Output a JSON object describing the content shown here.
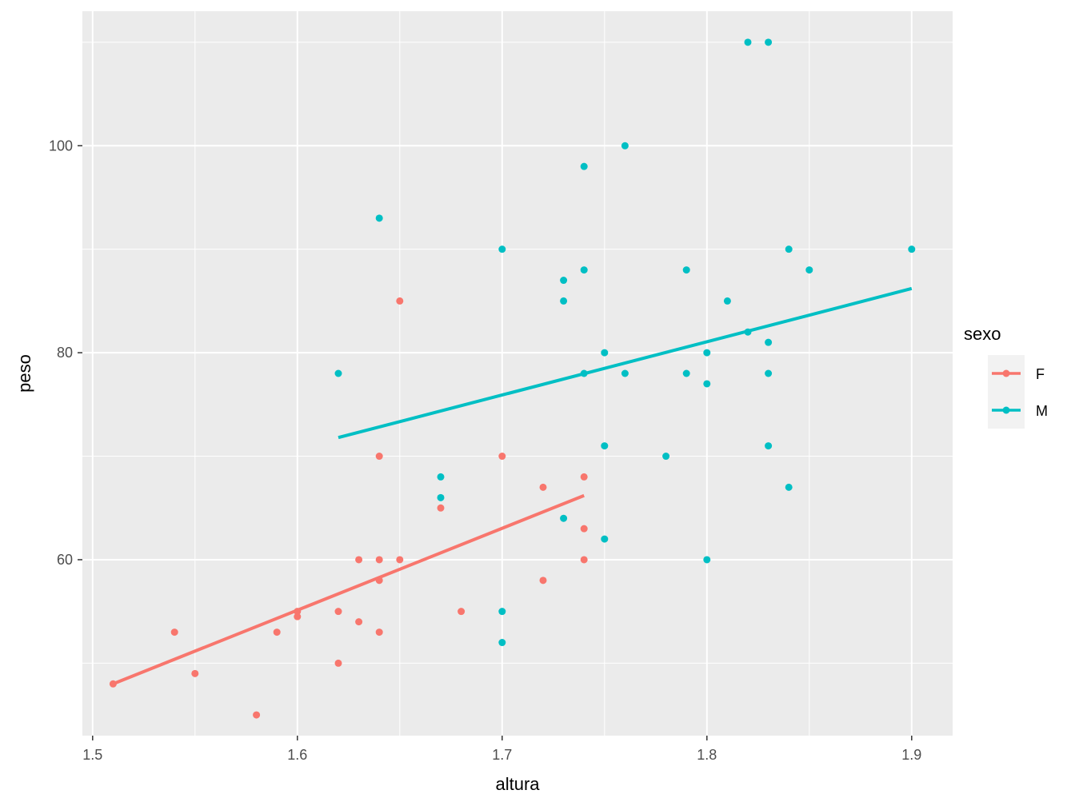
{
  "chart_data": {
    "type": "scatter",
    "title": "",
    "xlabel": "altura",
    "ylabel": "peso",
    "xlim": [
      1.495,
      1.92
    ],
    "ylim": [
      43.0,
      113.0
    ],
    "x_ticks": [
      1.5,
      1.6,
      1.7,
      1.8,
      1.9
    ],
    "x_tick_labels": [
      "1.5",
      "1.6",
      "1.7",
      "1.8",
      "1.9"
    ],
    "y_ticks": [
      60,
      80,
      100
    ],
    "y_tick_labels": [
      "60",
      "80",
      "100"
    ],
    "grid": true,
    "legend": {
      "title": "sexo",
      "placement": "right"
    },
    "series": [
      {
        "name": "F",
        "color": "#F8766D",
        "points": [
          [
            1.51,
            48
          ],
          [
            1.54,
            53
          ],
          [
            1.55,
            49
          ],
          [
            1.58,
            45
          ],
          [
            1.59,
            53
          ],
          [
            1.6,
            55
          ],
          [
            1.6,
            54.5
          ],
          [
            1.62,
            55
          ],
          [
            1.62,
            50
          ],
          [
            1.63,
            54
          ],
          [
            1.63,
            60
          ],
          [
            1.64,
            60
          ],
          [
            1.64,
            58
          ],
          [
            1.64,
            53
          ],
          [
            1.64,
            70
          ],
          [
            1.65,
            60
          ],
          [
            1.65,
            85
          ],
          [
            1.67,
            65
          ],
          [
            1.68,
            55
          ],
          [
            1.7,
            70
          ],
          [
            1.72,
            67
          ],
          [
            1.72,
            58
          ],
          [
            1.74,
            68
          ],
          [
            1.74,
            63
          ],
          [
            1.74,
            60
          ]
        ],
        "fit": {
          "x": [
            1.51,
            1.74
          ],
          "y": [
            48.0,
            66.2
          ]
        }
      },
      {
        "name": "M",
        "color": "#00BFC4",
        "points": [
          [
            1.62,
            78
          ],
          [
            1.64,
            93
          ],
          [
            1.67,
            68
          ],
          [
            1.67,
            66
          ],
          [
            1.7,
            90
          ],
          [
            1.7,
            55
          ],
          [
            1.7,
            52
          ],
          [
            1.73,
            87
          ],
          [
            1.73,
            85
          ],
          [
            1.73,
            64
          ],
          [
            1.74,
            98
          ],
          [
            1.74,
            88
          ],
          [
            1.74,
            78
          ],
          [
            1.75,
            80
          ],
          [
            1.75,
            71
          ],
          [
            1.75,
            62
          ],
          [
            1.76,
            100
          ],
          [
            1.76,
            78
          ],
          [
            1.78,
            70
          ],
          [
            1.79,
            88
          ],
          [
            1.79,
            78
          ],
          [
            1.8,
            80
          ],
          [
            1.8,
            77
          ],
          [
            1.8,
            60
          ],
          [
            1.81,
            85
          ],
          [
            1.82,
            110
          ],
          [
            1.82,
            82
          ],
          [
            1.83,
            110
          ],
          [
            1.83,
            81
          ],
          [
            1.83,
            78
          ],
          [
            1.83,
            71
          ],
          [
            1.84,
            90
          ],
          [
            1.84,
            67
          ],
          [
            1.85,
            88
          ],
          [
            1.9,
            90
          ]
        ],
        "fit": {
          "x": [
            1.62,
            1.9
          ],
          "y": [
            71.8,
            86.2
          ]
        }
      }
    ]
  }
}
